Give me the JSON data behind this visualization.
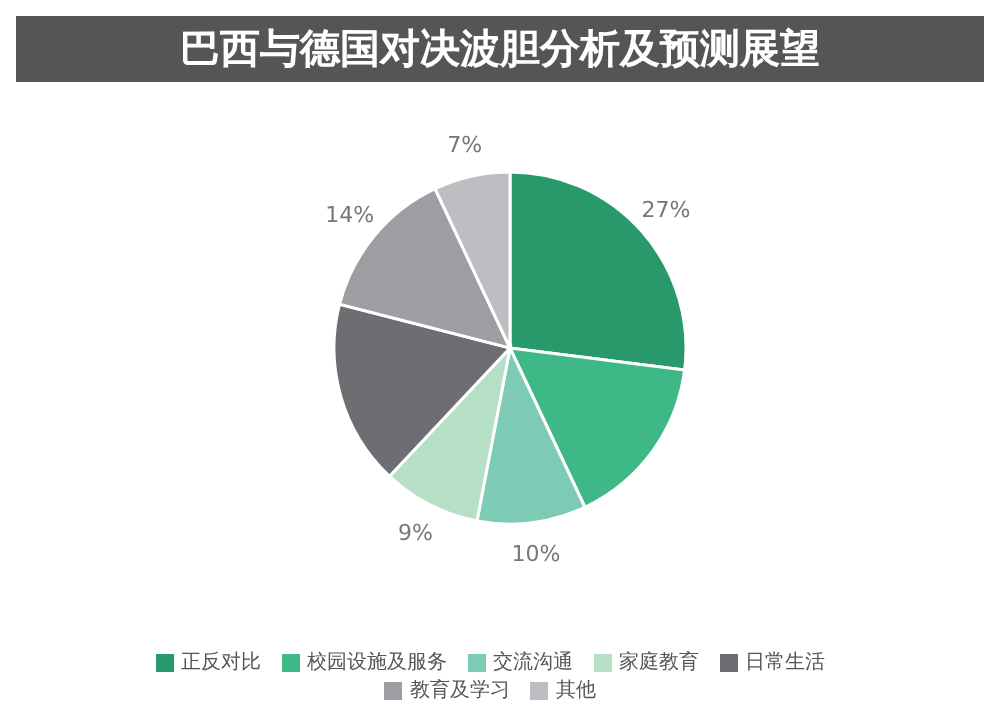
{
  "chart_data": {
    "type": "pie",
    "title": "巴西与德国对决波胆分析及预测展望",
    "categories": [
      "正反对比",
      "校园设施及服务",
      "交流沟通",
      "家庭教育",
      "日常生活",
      "教育及学习",
      "其他"
    ],
    "values": [
      27,
      16,
      10,
      9,
      17,
      14,
      7
    ],
    "value_labels": [
      "27%",
      null,
      "10%",
      "9%",
      null,
      "14%",
      "7%"
    ],
    "colors": [
      "#27996a",
      "#3fb887",
      "#7dcbb5",
      "#b5e0c6",
      "#6d6e71",
      "#9d9ea2",
      "#bdbec2"
    ],
    "legend": "bottom"
  }
}
